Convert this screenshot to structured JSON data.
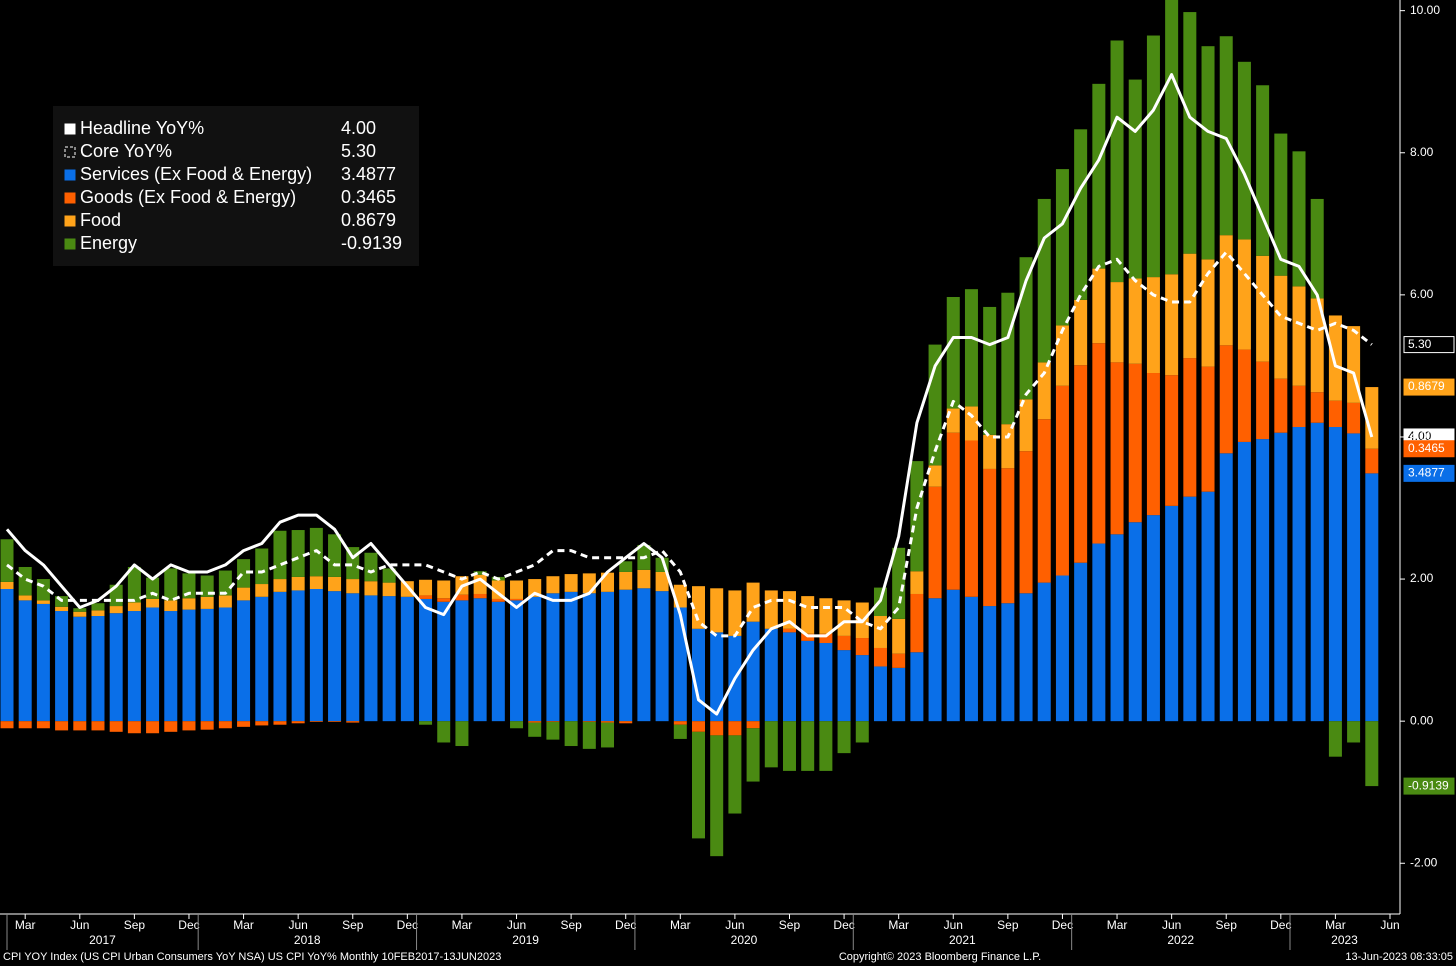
{
  "chart_data": {
    "type": "bar",
    "stacked": true,
    "x": [
      "2017-02",
      "2017-03",
      "2017-04",
      "2017-05",
      "2017-06",
      "2017-07",
      "2017-08",
      "2017-09",
      "2017-10",
      "2017-11",
      "2017-12",
      "2018-01",
      "2018-02",
      "2018-03",
      "2018-04",
      "2018-05",
      "2018-06",
      "2018-07",
      "2018-08",
      "2018-09",
      "2018-10",
      "2018-11",
      "2018-12",
      "2019-01",
      "2019-02",
      "2019-03",
      "2019-04",
      "2019-05",
      "2019-06",
      "2019-07",
      "2019-08",
      "2019-09",
      "2019-10",
      "2019-11",
      "2019-12",
      "2020-01",
      "2020-02",
      "2020-03",
      "2020-04",
      "2020-05",
      "2020-06",
      "2020-07",
      "2020-08",
      "2020-09",
      "2020-10",
      "2020-11",
      "2020-12",
      "2021-01",
      "2021-02",
      "2021-03",
      "2021-04",
      "2021-05",
      "2021-06",
      "2021-07",
      "2021-08",
      "2021-09",
      "2021-10",
      "2021-11",
      "2021-12",
      "2022-01",
      "2022-02",
      "2022-03",
      "2022-04",
      "2022-05",
      "2022-06",
      "2022-07",
      "2022-08",
      "2022-09",
      "2022-10",
      "2022-11",
      "2022-12",
      "2023-01",
      "2023-02",
      "2023-03",
      "2023-04",
      "2023-05"
    ],
    "xlim": [
      "2017-02",
      "2023-06"
    ],
    "xticks": [
      {
        "value": "2017-03",
        "label": "Mar"
      },
      {
        "value": "2017-06",
        "label": "Jun"
      },
      {
        "value": "2017-09",
        "label": "Sep"
      },
      {
        "value": "2017-12",
        "label": "Dec"
      },
      {
        "value": "2018-03",
        "label": "Mar"
      },
      {
        "value": "2018-06",
        "label": "Jun"
      },
      {
        "value": "2018-09",
        "label": "Sep"
      },
      {
        "value": "2018-12",
        "label": "Dec"
      },
      {
        "value": "2019-03",
        "label": "Mar"
      },
      {
        "value": "2019-06",
        "label": "Jun"
      },
      {
        "value": "2019-09",
        "label": "Sep"
      },
      {
        "value": "2019-12",
        "label": "Dec"
      },
      {
        "value": "2020-03",
        "label": "Mar"
      },
      {
        "value": "2020-06",
        "label": "Jun"
      },
      {
        "value": "2020-09",
        "label": "Sep"
      },
      {
        "value": "2020-12",
        "label": "Dec"
      },
      {
        "value": "2021-03",
        "label": "Mar"
      },
      {
        "value": "2021-06",
        "label": "Jun"
      },
      {
        "value": "2021-09",
        "label": "Sep"
      },
      {
        "value": "2021-12",
        "label": "Dec"
      },
      {
        "value": "2022-03",
        "label": "Mar"
      },
      {
        "value": "2022-06",
        "label": "Jun"
      },
      {
        "value": "2022-09",
        "label": "Sep"
      },
      {
        "value": "2022-12",
        "label": "Dec"
      },
      {
        "value": "2023-03",
        "label": "Mar"
      },
      {
        "value": "2023-06",
        "label": "Jun"
      }
    ],
    "years": [
      2017,
      2018,
      2019,
      2020,
      2021,
      2022,
      2023
    ],
    "ylim": [
      -2.7,
      10.15
    ],
    "yticks": [
      {
        "value": -2,
        "label": "-2.00"
      },
      {
        "value": 0,
        "label": "0.00"
      },
      {
        "value": 2,
        "label": "2.00"
      },
      {
        "value": 4,
        "label": "4.00"
      },
      {
        "value": 6,
        "label": "6.00"
      },
      {
        "value": 8,
        "label": "8.00"
      },
      {
        "value": 10,
        "label": "10.00"
      }
    ],
    "series": [
      {
        "name": "Headline YoY%",
        "kind": "line",
        "dashed": false,
        "color": "#ffffff",
        "legend_value": "4.00",
        "values": [
          2.7,
          2.4,
          2.2,
          1.9,
          1.6,
          1.7,
          1.9,
          2.2,
          2.0,
          2.2,
          2.1,
          2.1,
          2.2,
          2.4,
          2.5,
          2.8,
          2.9,
          2.9,
          2.7,
          2.3,
          2.5,
          2.2,
          1.9,
          1.6,
          1.5,
          1.9,
          2.0,
          1.8,
          1.6,
          1.8,
          1.7,
          1.7,
          1.8,
          2.1,
          2.3,
          2.5,
          2.3,
          1.5,
          0.3,
          0.1,
          0.6,
          1.0,
          1.3,
          1.4,
          1.2,
          1.2,
          1.4,
          1.4,
          1.7,
          2.6,
          4.2,
          5.0,
          5.4,
          5.4,
          5.3,
          5.4,
          6.2,
          6.8,
          7.0,
          7.5,
          7.9,
          8.5,
          8.3,
          8.6,
          9.1,
          8.5,
          8.3,
          8.2,
          7.7,
          7.1,
          6.5,
          6.4,
          6.0,
          5.0,
          4.9,
          4.0
        ]
      },
      {
        "name": "Core YoY%",
        "kind": "line",
        "dashed": true,
        "color": "#ffffff",
        "legend_value": "5.30",
        "values": [
          2.2,
          2.0,
          1.9,
          1.7,
          1.7,
          1.7,
          1.7,
          1.7,
          1.8,
          1.7,
          1.8,
          1.8,
          1.8,
          2.1,
          2.1,
          2.2,
          2.3,
          2.4,
          2.2,
          2.2,
          2.1,
          2.2,
          2.2,
          2.2,
          2.1,
          2.0,
          2.1,
          2.0,
          2.1,
          2.2,
          2.4,
          2.4,
          2.3,
          2.3,
          2.3,
          2.3,
          2.4,
          2.1,
          1.4,
          1.2,
          1.2,
          1.6,
          1.7,
          1.7,
          1.6,
          1.6,
          1.6,
          1.4,
          1.3,
          1.6,
          3.0,
          3.8,
          4.5,
          4.3,
          4.0,
          4.0,
          4.6,
          4.9,
          5.5,
          6.0,
          6.4,
          6.5,
          6.2,
          6.0,
          5.9,
          5.9,
          6.3,
          6.6,
          6.3,
          6.0,
          5.7,
          5.6,
          5.5,
          5.6,
          5.5,
          5.3
        ]
      },
      {
        "name": "Services (Ex Food & Energy)",
        "kind": "bar",
        "color": "#0a6fe8",
        "legend_value": "3.4877",
        "values": [
          1.86,
          1.7,
          1.65,
          1.55,
          1.47,
          1.48,
          1.52,
          1.55,
          1.6,
          1.55,
          1.57,
          1.58,
          1.6,
          1.7,
          1.75,
          1.82,
          1.84,
          1.86,
          1.83,
          1.8,
          1.77,
          1.76,
          1.75,
          1.72,
          1.68,
          1.7,
          1.73,
          1.68,
          1.7,
          1.75,
          1.8,
          1.82,
          1.8,
          1.82,
          1.85,
          1.87,
          1.83,
          1.6,
          1.3,
          1.25,
          1.2,
          1.4,
          1.3,
          1.25,
          1.13,
          1.1,
          1.0,
          0.93,
          0.77,
          0.75,
          0.97,
          1.73,
          1.85,
          1.75,
          1.62,
          1.66,
          1.8,
          1.95,
          2.05,
          2.23,
          2.5,
          2.63,
          2.8,
          2.9,
          3.03,
          3.16,
          3.23,
          3.77,
          3.93,
          3.97,
          4.06,
          4.14,
          4.2,
          4.14,
          4.05,
          3.4877
        ]
      },
      {
        "name": "Goods (Ex Food & Energy)",
        "kind": "bar",
        "color": "#ff6000",
        "legend_value": "0.3465",
        "values": [
          -0.1,
          -0.1,
          -0.1,
          -0.13,
          -0.13,
          -0.13,
          -0.15,
          -0.17,
          -0.17,
          -0.15,
          -0.13,
          -0.12,
          -0.1,
          -0.08,
          -0.06,
          -0.05,
          -0.03,
          -0.01,
          -0.01,
          -0.02,
          0.0,
          0.0,
          0.0,
          0.05,
          0.05,
          0.08,
          0.06,
          0.04,
          0.02,
          -0.02,
          -0.01,
          0.0,
          -0.01,
          -0.02,
          -0.03,
          0.0,
          0.0,
          -0.05,
          -0.15,
          -0.2,
          -0.2,
          -0.1,
          0.0,
          0.05,
          0.1,
          0.13,
          0.2,
          0.24,
          0.26,
          0.2,
          0.82,
          1.57,
          2.21,
          2.2,
          1.93,
          1.9,
          2.0,
          2.3,
          2.67,
          2.78,
          2.82,
          2.42,
          2.23,
          2.0,
          1.84,
          1.95,
          1.76,
          1.52,
          1.3,
          1.09,
          0.76,
          0.58,
          0.43,
          0.37,
          0.43,
          0.3465
        ]
      },
      {
        "name": "Food",
        "kind": "bar",
        "color": "#ffa31a",
        "legend_value": "0.8679",
        "values": [
          0.1,
          0.07,
          0.05,
          0.06,
          0.07,
          0.08,
          0.1,
          0.12,
          0.12,
          0.15,
          0.16,
          0.17,
          0.17,
          0.18,
          0.18,
          0.18,
          0.19,
          0.18,
          0.2,
          0.2,
          0.2,
          0.19,
          0.22,
          0.22,
          0.25,
          0.26,
          0.27,
          0.26,
          0.26,
          0.25,
          0.24,
          0.25,
          0.28,
          0.27,
          0.25,
          0.26,
          0.27,
          0.32,
          0.6,
          0.62,
          0.64,
          0.55,
          0.54,
          0.53,
          0.53,
          0.5,
          0.5,
          0.5,
          0.45,
          0.49,
          0.32,
          0.3,
          0.34,
          0.48,
          0.48,
          0.62,
          0.73,
          0.8,
          0.85,
          0.92,
          1.05,
          1.13,
          1.2,
          1.35,
          1.42,
          1.47,
          1.51,
          1.55,
          1.55,
          1.49,
          1.45,
          1.4,
          1.32,
          1.2,
          1.08,
          0.8679
        ]
      },
      {
        "name": "Energy",
        "kind": "bar",
        "color": "#4a8a12",
        "legend_value": "-0.9139",
        "values": [
          0.6,
          0.4,
          0.3,
          0.15,
          0.05,
          0.1,
          0.3,
          0.5,
          0.3,
          0.45,
          0.35,
          0.3,
          0.35,
          0.4,
          0.5,
          0.68,
          0.66,
          0.68,
          0.6,
          0.45,
          0.4,
          0.2,
          0.0,
          -0.05,
          -0.3,
          -0.35,
          0.05,
          0.05,
          -0.1,
          -0.2,
          -0.25,
          -0.35,
          -0.38,
          -0.35,
          0.15,
          0.35,
          0.2,
          -0.2,
          -1.5,
          -1.7,
          -1.1,
          -0.75,
          -0.65,
          -0.7,
          -0.7,
          -0.7,
          -0.45,
          -0.3,
          0.4,
          1.0,
          1.55,
          1.7,
          1.57,
          1.65,
          1.8,
          1.85,
          2.0,
          2.3,
          2.2,
          2.4,
          2.6,
          3.4,
          2.8,
          3.4,
          4.1,
          3.4,
          3.0,
          2.8,
          2.5,
          2.4,
          2.0,
          1.9,
          1.4,
          -0.5,
          -0.3,
          -0.9139
        ]
      }
    ],
    "footer_left": "CPI YOY Index (US CPI Urban Consumers YoY NSA) US CPI YoY%  Monthly 10FEB2017-13JUN2023",
    "footer_center": "Copyright© 2023 Bloomberg Finance L.P.",
    "footer_right": "13-Jun-2023 08:33:05"
  }
}
